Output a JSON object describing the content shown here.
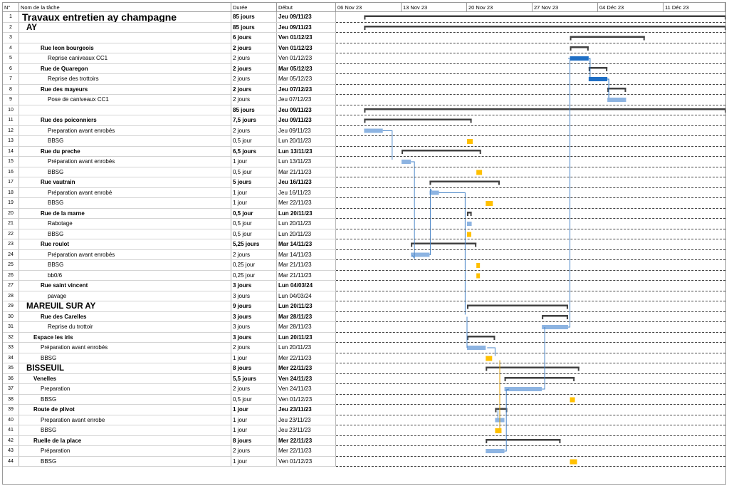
{
  "headers": {
    "num": "N°",
    "name": "Nom de la tâche",
    "duration": "Durée",
    "start": "Début"
  },
  "timeline": {
    "weeks": [
      "06 Nov 23",
      "13 Nov 23",
      "20 Nov 23",
      "27 Nov 23",
      "04 Déc 23",
      "11 Déc 23"
    ]
  },
  "colors": {
    "summary": "#404040",
    "task_light": "#8db4e2",
    "task_dark": "#1f6fc5",
    "milestone": "#ffc000",
    "link": "#4a86c8",
    "link_orange": "#e0a000"
  },
  "tasks": [
    {
      "num": "1",
      "name": "Travaux entretien ay champagne",
      "duration": "85 jours",
      "start": "Jeu 09/11/23",
      "level": "title1",
      "bold": true
    },
    {
      "num": "2",
      "name": "AY",
      "duration": "85 jours",
      "start": "Jeu 09/11/23",
      "level": "title2",
      "bold": true
    },
    {
      "num": "3",
      "name": "",
      "duration": "6 jours",
      "start": "Ven 01/12/23",
      "level": "l1",
      "bold": true
    },
    {
      "num": "4",
      "name": "Rue leon bourgeois",
      "duration": "2 jours",
      "start": "Ven 01/12/23",
      "level": "l1",
      "bold": true
    },
    {
      "num": "5",
      "name": "Reprise caniveaux CC1",
      "duration": "2 jours",
      "start": "Ven 01/12/23",
      "level": "l2",
      "bold": false
    },
    {
      "num": "6",
      "name": "Rue de Quaregon",
      "duration": "2 jours",
      "start": "Mar 05/12/23",
      "level": "l1",
      "bold": true
    },
    {
      "num": "7",
      "name": "Reprise des trottoirs",
      "duration": "2 jours",
      "start": "Mar 05/12/23",
      "level": "l2",
      "bold": false
    },
    {
      "num": "8",
      "name": "Rue des mayeurs",
      "duration": "2 jours",
      "start": "Jeu 07/12/23",
      "level": "l1",
      "bold": true
    },
    {
      "num": "9",
      "name": "Pose de caniveaux CC1",
      "duration": "2 jours",
      "start": "Jeu 07/12/23",
      "level": "l2",
      "bold": false
    },
    {
      "num": "10",
      "name": "",
      "duration": "85 jours",
      "start": "Jeu 09/11/23",
      "level": "l1",
      "bold": true
    },
    {
      "num": "11",
      "name": "Rue des poiconniers",
      "duration": "7,5 jours",
      "start": "Jeu 09/11/23",
      "level": "l1",
      "bold": true
    },
    {
      "num": "12",
      "name": "Preparation avant enrobés",
      "duration": "2 jours",
      "start": "Jeu 09/11/23",
      "level": "l2",
      "bold": false
    },
    {
      "num": "13",
      "name": "BBSG",
      "duration": "0,5 jour",
      "start": "Lun 20/11/23",
      "level": "l2",
      "bold": false
    },
    {
      "num": "14",
      "name": "Rue du preche",
      "duration": "6,5 jours",
      "start": "Lun 13/11/23",
      "level": "l1",
      "bold": true
    },
    {
      "num": "15",
      "name": "Préparation avant enrobés",
      "duration": "1 jour",
      "start": "Lun 13/11/23",
      "level": "l2",
      "bold": false
    },
    {
      "num": "16",
      "name": "BBSG",
      "duration": "0,5 jour",
      "start": "Mar 21/11/23",
      "level": "l2",
      "bold": false
    },
    {
      "num": "17",
      "name": "Rue vautrain",
      "duration": "5 jours",
      "start": "Jeu 16/11/23",
      "level": "l1",
      "bold": true
    },
    {
      "num": "18",
      "name": "Préparation avant enrobé",
      "duration": "1 jour",
      "start": "Jeu 16/11/23",
      "level": "l2",
      "bold": false
    },
    {
      "num": "19",
      "name": "BBSG",
      "duration": "1 jour",
      "start": "Mer 22/11/23",
      "level": "l2",
      "bold": false
    },
    {
      "num": "20",
      "name": "Rue de la marne",
      "duration": "0,5 jour",
      "start": "Lun 20/11/23",
      "level": "l1",
      "bold": true
    },
    {
      "num": "21",
      "name": "Rabotage",
      "duration": "0,5 jour",
      "start": "Lun 20/11/23",
      "level": "l2",
      "bold": false
    },
    {
      "num": "22",
      "name": "BBSG",
      "duration": "0,5 jour",
      "start": "Lun 20/11/23",
      "level": "l2",
      "bold": false
    },
    {
      "num": "23",
      "name": "Rue roulot",
      "duration": "5,25 jours",
      "start": "Mar 14/11/23",
      "level": "l1",
      "bold": true
    },
    {
      "num": "24",
      "name": "Préparation avant enrobés",
      "duration": "2 jours",
      "start": "Mar 14/11/23",
      "level": "l2",
      "bold": false
    },
    {
      "num": "25",
      "name": "BBSG",
      "duration": "0,25 jour",
      "start": "Mar 21/11/23",
      "level": "l2",
      "bold": false
    },
    {
      "num": "26",
      "name": "bb0/6",
      "duration": "0,25 jour",
      "start": "Mar 21/11/23",
      "level": "l2",
      "bold": false
    },
    {
      "num": "27",
      "name": "Rue saint vincent",
      "duration": "3 jours",
      "start": "Lun 04/03/24",
      "level": "l1",
      "bold": true
    },
    {
      "num": "28",
      "name": "pavage",
      "duration": "3 jours",
      "start": "Lun 04/03/24",
      "level": "l2",
      "bold": false
    },
    {
      "num": "29",
      "name": "MAREUIL SUR AY",
      "duration": "9 jours",
      "start": "Lun 20/11/23",
      "level": "title2",
      "bold": true
    },
    {
      "num": "30",
      "name": "Rue des Carelles",
      "duration": "3 jours",
      "start": "Mar 28/11/23",
      "level": "l1",
      "bold": true
    },
    {
      "num": "31",
      "name": "Reprise du trottoir",
      "duration": "3 jours",
      "start": "Mar 28/11/23",
      "level": "l2",
      "bold": false
    },
    {
      "num": "32",
      "name": "Espace les iris",
      "duration": "3 jours",
      "start": "Lun 20/11/23",
      "level": "l1s",
      "bold": true
    },
    {
      "num": "33",
      "name": "Préparation avant enrobés",
      "duration": "2 jours",
      "start": "Lun 20/11/23",
      "level": "l2s",
      "bold": false
    },
    {
      "num": "34",
      "name": "BBSG",
      "duration": "1 jour",
      "start": "Mer 22/11/23",
      "level": "l2s",
      "bold": false
    },
    {
      "num": "35",
      "name": "BISSEUIL",
      "duration": "8 jours",
      "start": "Mer 22/11/23",
      "level": "title2",
      "bold": true
    },
    {
      "num": "36",
      "name": "Venelles",
      "duration": "5,5 jours",
      "start": "Ven 24/11/23",
      "level": "l1s",
      "bold": true
    },
    {
      "num": "37",
      "name": "Preparation",
      "duration": "2 jours",
      "start": "Ven 24/11/23",
      "level": "l2s",
      "bold": false
    },
    {
      "num": "38",
      "name": "BBSG",
      "duration": "0,5 jour",
      "start": "Ven 01/12/23",
      "level": "l2s",
      "bold": false
    },
    {
      "num": "39",
      "name": "Route de plivot",
      "duration": "1 jour",
      "start": "Jeu 23/11/23",
      "level": "l1s",
      "bold": true
    },
    {
      "num": "40",
      "name": "Preparation avant enrobe",
      "duration": "1 jour",
      "start": "Jeu 23/11/23",
      "level": "l2s",
      "bold": false
    },
    {
      "num": "41",
      "name": "BBSG",
      "duration": "1 jour",
      "start": "Jeu 23/11/23",
      "level": "l2s",
      "bold": false
    },
    {
      "num": "42",
      "name": "Ruelle de la place",
      "duration": "8 jours",
      "start": "Mer 22/11/23",
      "level": "l1s",
      "bold": true
    },
    {
      "num": "43",
      "name": "Préparation",
      "duration": "2 jours",
      "start": "Mer 22/11/23",
      "level": "l2s",
      "bold": false
    },
    {
      "num": "44",
      "name": "BBSG",
      "duration": "1 jour",
      "start": "Ven 01/12/23",
      "level": "l2s",
      "bold": false
    }
  ]
}
